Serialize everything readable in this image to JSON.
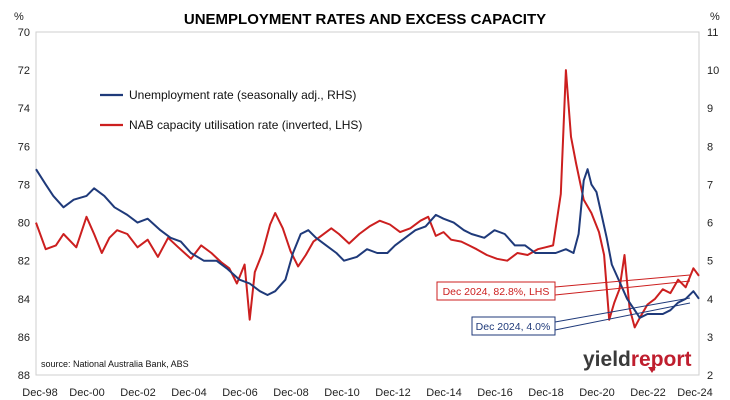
{
  "chart_data": {
    "type": "line",
    "title": "UNEMPLOYMENT RATES AND EXCESS CAPACITY",
    "left_axis": {
      "unit_label": "%",
      "ticks": [
        70,
        72,
        74,
        76,
        78,
        80,
        82,
        84,
        86,
        88
      ],
      "range": [
        70,
        88
      ],
      "inverted": true
    },
    "right_axis": {
      "unit_label": "%",
      "ticks": [
        11,
        10,
        9,
        8,
        7,
        6,
        5,
        4,
        3,
        2
      ],
      "range": [
        2,
        11
      ]
    },
    "x_ticks": [
      "Dec-98",
      "Dec-00",
      "Dec-02",
      "Dec-04",
      "Dec-06",
      "Dec-08",
      "Dec-10",
      "Dec-12",
      "Dec-14",
      "Dec-16",
      "Dec-18",
      "Dec-20",
      "Dec-22",
      "Dec-24"
    ],
    "x_range": [
      1998.92,
      2024.92
    ],
    "legend_position": "top-left",
    "grid": false,
    "series": [
      {
        "name": "Unemployment rate (seasonally adj., RHS)",
        "axis": "right",
        "color": "#1f3a7a",
        "points": [
          [
            1998.92,
            7.4
          ],
          [
            1999.3,
            7.0
          ],
          [
            1999.6,
            6.7
          ],
          [
            2000.0,
            6.4
          ],
          [
            2000.4,
            6.6
          ],
          [
            2000.9,
            6.7
          ],
          [
            2001.2,
            6.9
          ],
          [
            2001.6,
            6.7
          ],
          [
            2002.0,
            6.4
          ],
          [
            2002.5,
            6.2
          ],
          [
            2002.9,
            6.0
          ],
          [
            2003.3,
            6.1
          ],
          [
            2003.8,
            5.8
          ],
          [
            2004.2,
            5.6
          ],
          [
            2004.6,
            5.5
          ],
          [
            2005.0,
            5.2
          ],
          [
            2005.5,
            5.0
          ],
          [
            2006.0,
            5.0
          ],
          [
            2006.4,
            4.8
          ],
          [
            2006.9,
            4.5
          ],
          [
            2007.3,
            4.4
          ],
          [
            2007.7,
            4.2
          ],
          [
            2008.0,
            4.1
          ],
          [
            2008.3,
            4.2
          ],
          [
            2008.7,
            4.5
          ],
          [
            2009.0,
            5.2
          ],
          [
            2009.3,
            5.7
          ],
          [
            2009.6,
            5.8
          ],
          [
            2009.9,
            5.6
          ],
          [
            2010.3,
            5.4
          ],
          [
            2010.7,
            5.2
          ],
          [
            2011.0,
            5.0
          ],
          [
            2011.5,
            5.1
          ],
          [
            2011.9,
            5.3
          ],
          [
            2012.3,
            5.2
          ],
          [
            2012.7,
            5.2
          ],
          [
            2013.0,
            5.4
          ],
          [
            2013.4,
            5.6
          ],
          [
            2013.8,
            5.8
          ],
          [
            2014.2,
            5.9
          ],
          [
            2014.6,
            6.2
          ],
          [
            2014.9,
            6.1
          ],
          [
            2015.3,
            6.0
          ],
          [
            2015.7,
            5.8
          ],
          [
            2016.0,
            5.7
          ],
          [
            2016.5,
            5.6
          ],
          [
            2016.9,
            5.8
          ],
          [
            2017.3,
            5.7
          ],
          [
            2017.7,
            5.4
          ],
          [
            2018.1,
            5.4
          ],
          [
            2018.5,
            5.2
          ],
          [
            2018.9,
            5.2
          ],
          [
            2019.3,
            5.2
          ],
          [
            2019.7,
            5.3
          ],
          [
            2020.0,
            5.2
          ],
          [
            2020.2,
            5.7
          ],
          [
            2020.4,
            7.1
          ],
          [
            2020.55,
            7.4
          ],
          [
            2020.7,
            7.0
          ],
          [
            2020.9,
            6.8
          ],
          [
            2021.1,
            6.2
          ],
          [
            2021.3,
            5.6
          ],
          [
            2021.5,
            4.9
          ],
          [
            2021.7,
            4.6
          ],
          [
            2021.9,
            4.3
          ],
          [
            2022.1,
            4.0
          ],
          [
            2022.3,
            3.8
          ],
          [
            2022.6,
            3.5
          ],
          [
            2022.9,
            3.6
          ],
          [
            2023.2,
            3.6
          ],
          [
            2023.5,
            3.6
          ],
          [
            2023.8,
            3.7
          ],
          [
            2024.1,
            3.9
          ],
          [
            2024.4,
            4.0
          ],
          [
            2024.7,
            4.2
          ],
          [
            2024.92,
            4.0
          ]
        ]
      },
      {
        "name": "NAB capacity utilisation rate (inverted, LHS)",
        "axis": "left",
        "color": "#cc1f1f",
        "points": [
          [
            1998.92,
            80.0
          ],
          [
            1999.3,
            81.4
          ],
          [
            1999.7,
            81.2
          ],
          [
            2000.0,
            80.6
          ],
          [
            2000.5,
            81.3
          ],
          [
            2000.9,
            79.7
          ],
          [
            2001.2,
            80.6
          ],
          [
            2001.5,
            81.6
          ],
          [
            2001.8,
            80.8
          ],
          [
            2002.1,
            80.4
          ],
          [
            2002.5,
            80.6
          ],
          [
            2002.9,
            81.3
          ],
          [
            2003.3,
            80.9
          ],
          [
            2003.7,
            81.8
          ],
          [
            2004.1,
            80.8
          ],
          [
            2004.5,
            81.3
          ],
          [
            2005.0,
            81.9
          ],
          [
            2005.4,
            81.2
          ],
          [
            2005.8,
            81.6
          ],
          [
            2006.2,
            82.1
          ],
          [
            2006.5,
            82.4
          ],
          [
            2006.8,
            83.2
          ],
          [
            2007.1,
            82.2
          ],
          [
            2007.3,
            85.1
          ],
          [
            2007.5,
            82.6
          ],
          [
            2007.8,
            81.6
          ],
          [
            2008.1,
            80.1
          ],
          [
            2008.3,
            79.5
          ],
          [
            2008.6,
            80.3
          ],
          [
            2008.9,
            81.5
          ],
          [
            2009.2,
            82.3
          ],
          [
            2009.5,
            81.7
          ],
          [
            2009.8,
            81.0
          ],
          [
            2010.1,
            80.7
          ],
          [
            2010.5,
            80.3
          ],
          [
            2010.8,
            80.6
          ],
          [
            2011.2,
            81.1
          ],
          [
            2011.6,
            80.6
          ],
          [
            2012.0,
            80.2
          ],
          [
            2012.4,
            79.9
          ],
          [
            2012.8,
            80.1
          ],
          [
            2013.2,
            80.5
          ],
          [
            2013.6,
            80.3
          ],
          [
            2014.0,
            79.9
          ],
          [
            2014.3,
            79.7
          ],
          [
            2014.6,
            80.7
          ],
          [
            2014.9,
            80.5
          ],
          [
            2015.2,
            80.9
          ],
          [
            2015.6,
            81.0
          ],
          [
            2015.9,
            81.2
          ],
          [
            2016.2,
            81.4
          ],
          [
            2016.6,
            81.7
          ],
          [
            2017.0,
            81.9
          ],
          [
            2017.4,
            82.0
          ],
          [
            2017.8,
            81.6
          ],
          [
            2018.2,
            81.7
          ],
          [
            2018.6,
            81.4
          ],
          [
            2018.9,
            81.3
          ],
          [
            2019.2,
            81.2
          ],
          [
            2019.5,
            78.5
          ],
          [
            2019.7,
            72.0
          ],
          [
            2019.9,
            75.5
          ],
          [
            2020.1,
            76.9
          ],
          [
            2020.4,
            78.8
          ],
          [
            2020.7,
            79.5
          ],
          [
            2021.0,
            80.5
          ],
          [
            2021.2,
            81.7
          ],
          [
            2021.4,
            85.1
          ],
          [
            2021.6,
            84.2
          ],
          [
            2021.8,
            83.5
          ],
          [
            2022.0,
            81.7
          ],
          [
            2022.2,
            84.5
          ],
          [
            2022.4,
            85.5
          ],
          [
            2022.6,
            85.0
          ],
          [
            2022.9,
            84.3
          ],
          [
            2023.2,
            84.0
          ],
          [
            2023.5,
            83.5
          ],
          [
            2023.8,
            83.7
          ],
          [
            2024.1,
            83.0
          ],
          [
            2024.4,
            83.4
          ],
          [
            2024.7,
            82.4
          ],
          [
            2024.92,
            82.8
          ]
        ]
      }
    ],
    "annotations": [
      {
        "text": "Dec 2024, 82.8%, LHS",
        "series": 1,
        "color": "#cc1f1f"
      },
      {
        "text": "Dec 2024, 4.0%",
        "series": 0,
        "color": "#1f3a7a"
      }
    ],
    "source": "source: National Australia Bank, ABS"
  },
  "logo": {
    "part1": "yield",
    "part2": "report"
  }
}
